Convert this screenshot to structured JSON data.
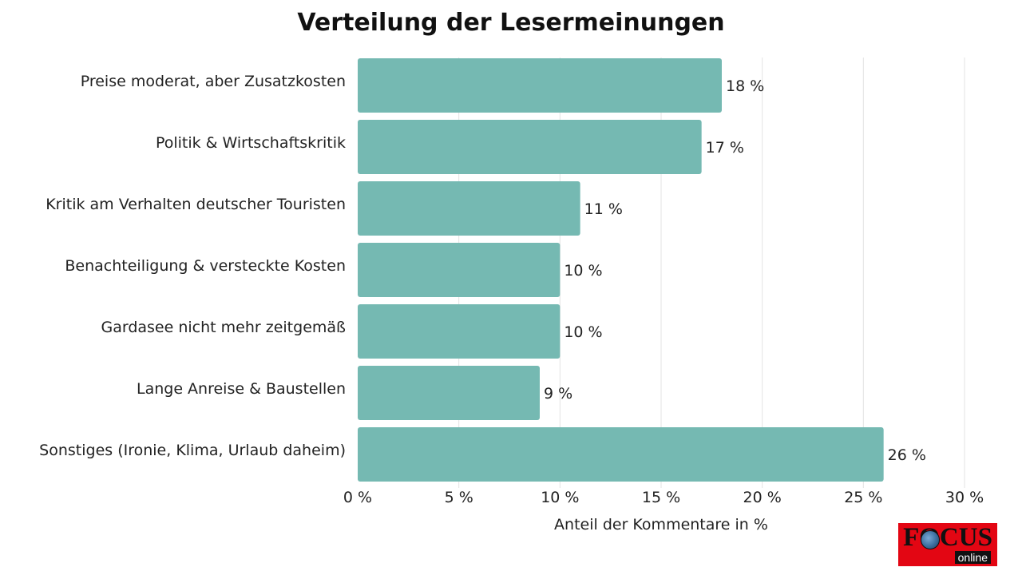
{
  "chart_data": {
    "type": "bar",
    "orientation": "horizontal",
    "title": "Verteilung der Lesermeinungen",
    "categories": [
      "Preise moderat, aber Zusatzkosten",
      "Politik & Wirtschaftskritik",
      "Kritik am Verhalten deutscher Touristen",
      "Benachteiligung & versteckte Kosten",
      "Gardasee nicht mehr zeitgemäß",
      "Lange Anreise & Baustellen",
      "Sonstiges (Ironie, Klima, Urlaub daheim)"
    ],
    "values": [
      18,
      17,
      11,
      10,
      10,
      9,
      26
    ],
    "value_labels": [
      "18 %",
      "17 %",
      "11 %",
      "10 %",
      "10 %",
      "9 %",
      "26 %"
    ],
    "xlabel": "Anteil der Kommentare in %",
    "ylabel": "",
    "xlim": [
      0,
      30
    ],
    "ticks": [
      0,
      5,
      10,
      15,
      20,
      25,
      30
    ],
    "tick_labels": [
      "0 %",
      "5 %",
      "10 %",
      "15 %",
      "20 %",
      "25 %",
      "30 %"
    ],
    "grid": true,
    "bar_color": "#75b9b2"
  },
  "logo": {
    "text": "FOCUS",
    "subtext": "online",
    "color": "#e30613"
  }
}
